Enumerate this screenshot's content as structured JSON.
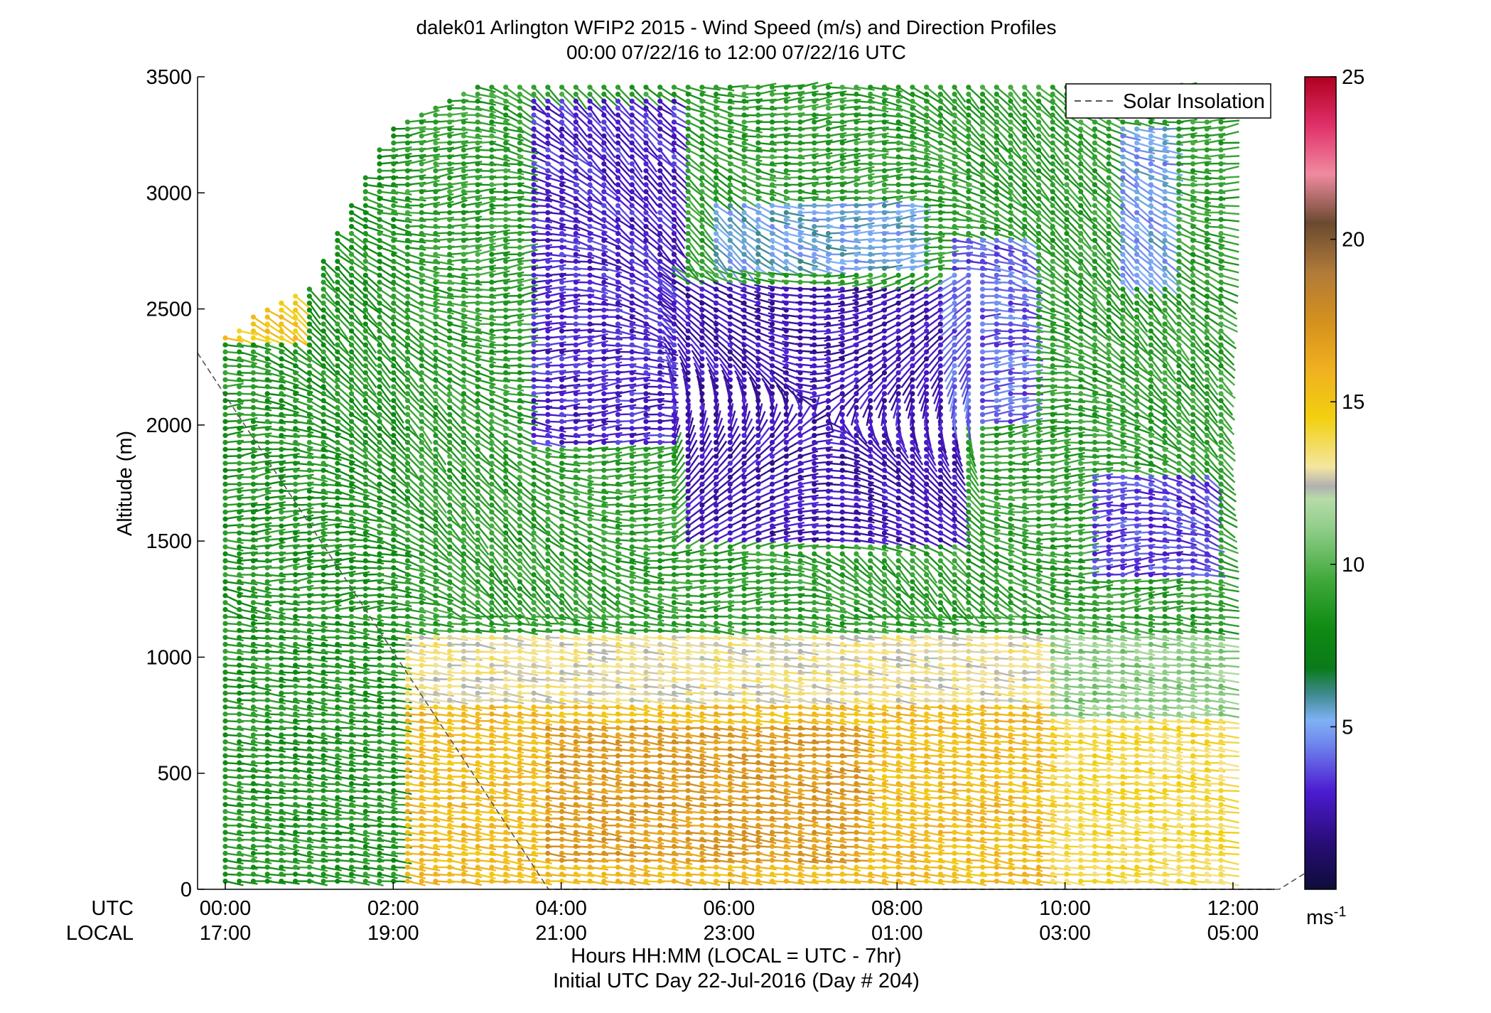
{
  "chart_data": {
    "type": "scatter",
    "title": "dalek01 Arlington WFIP2 2015 - Wind Speed (m/s) and Direction Profiles",
    "subtitle": "00:00 07/22/16 to 12:00 07/22/16  UTC",
    "ylabel": "Altitude (m)",
    "xlabel": "Hours HH:MM  (LOCAL = UTC - 7hr)",
    "xlabel2": "Initial UTC Day 22-Jul-2016 (Day # 204)",
    "row_label_utc": "UTC",
    "row_label_local": "LOCAL",
    "ylim": [
      0,
      3500
    ],
    "y_ticks": [
      {
        "value": 0,
        "label": "0"
      },
      {
        "value": 500,
        "label": "500"
      },
      {
        "value": 1000,
        "label": "1000"
      },
      {
        "value": 1500,
        "label": "1500"
      },
      {
        "value": 2000,
        "label": "2000"
      },
      {
        "value": 2500,
        "label": "2500"
      },
      {
        "value": 3000,
        "label": "3000"
      },
      {
        "value": 3500,
        "label": "3500"
      }
    ],
    "xlim_hours": [
      -0.33,
      12.5
    ],
    "x_ticks": [
      {
        "hour": 0,
        "utc": "00:00",
        "local": "17:00"
      },
      {
        "hour": 2,
        "utc": "02:00",
        "local": "19:00"
      },
      {
        "hour": 4,
        "utc": "04:00",
        "local": "21:00"
      },
      {
        "hour": 6,
        "utc": "06:00",
        "local": "23:00"
      },
      {
        "hour": 8,
        "utc": "08:00",
        "local": "01:00"
      },
      {
        "hour": 10,
        "utc": "10:00",
        "local": "03:00"
      },
      {
        "hour": 12,
        "utc": "12:00",
        "local": "05:00"
      }
    ],
    "legend": {
      "position": "top-right",
      "entry": "Solar Insolation",
      "line_color": "#555555"
    },
    "solar_insolation_line": [
      {
        "hour": -0.33,
        "alt": 2310
      },
      {
        "hour": 3.85,
        "alt": 0
      },
      {
        "hour": 12.55,
        "alt": 0
      },
      {
        "hour": 12.95,
        "alt": 90
      }
    ],
    "colorbar": {
      "label": "ms",
      "label_exp": "-1",
      "range": [
        0,
        25
      ],
      "ticks": [
        {
          "value": 5,
          "label": "5"
        },
        {
          "value": 10,
          "label": "10"
        },
        {
          "value": 15,
          "label": "15"
        },
        {
          "value": 20,
          "label": "20"
        },
        {
          "value": 25,
          "label": "25"
        }
      ],
      "stops": [
        {
          "value": 0,
          "color": "#0d0d3a"
        },
        {
          "value": 1.5,
          "color": "#2a0d7a"
        },
        {
          "value": 3,
          "color": "#4b1bd0"
        },
        {
          "value": 4.5,
          "color": "#6f88ee"
        },
        {
          "value": 5.2,
          "color": "#7fb2f5"
        },
        {
          "value": 6,
          "color": "#3f8a90"
        },
        {
          "value": 6.8,
          "color": "#0a7a1a"
        },
        {
          "value": 8,
          "color": "#0f8a12"
        },
        {
          "value": 9.5,
          "color": "#3fa83a"
        },
        {
          "value": 11,
          "color": "#8ccb86"
        },
        {
          "value": 12,
          "color": "#b6dca8"
        },
        {
          "value": 12.4,
          "color": "#b0b0b0"
        },
        {
          "value": 13,
          "color": "#f4e6a0"
        },
        {
          "value": 14.5,
          "color": "#f2d010"
        },
        {
          "value": 16,
          "color": "#f0b020"
        },
        {
          "value": 17.5,
          "color": "#d4901e"
        },
        {
          "value": 19,
          "color": "#b07a3a"
        },
        {
          "value": 20.5,
          "color": "#6a4a30"
        },
        {
          "value": 22,
          "color": "#f08aa0"
        },
        {
          "value": 23.5,
          "color": "#e0306a"
        },
        {
          "value": 25,
          "color": "#b00020"
        }
      ]
    },
    "barb_grid": {
      "hour_start": 0,
      "hour_end": 11.9,
      "hour_step": 0.167,
      "alt_start": 35,
      "alt_step": 30
    },
    "profile_tops": [
      {
        "hour": 0.0,
        "top": 2400
      },
      {
        "hour": 1.0,
        "top": 2600
      },
      {
        "hour": 2.0,
        "top": 3300
      },
      {
        "hour": 3.0,
        "top": 3480
      },
      {
        "hour": 4.0,
        "top": 3480
      },
      {
        "hour": 6.0,
        "top": 3480
      },
      {
        "hour": 8.0,
        "top": 3480
      },
      {
        "hour": 10.0,
        "top": 3480
      },
      {
        "hour": 11.9,
        "top": 3480
      }
    ],
    "regions": [
      {
        "h0": -1,
        "h1": 2.1,
        "a0": 0,
        "a1": 3500,
        "speed": 8.5
      },
      {
        "h0": -1,
        "h1": 0.9,
        "a0": 2350,
        "a1": 3500,
        "speed": 15
      },
      {
        "h0": 2.1,
        "h1": 9.8,
        "a0": 0,
        "a1": 800,
        "speed": 15.5
      },
      {
        "h0": 3.8,
        "h1": 7.6,
        "a0": 100,
        "a1": 700,
        "speed": 17
      },
      {
        "h0": 2.1,
        "h1": 9.8,
        "a0": 800,
        "a1": 1100,
        "speed": 13
      },
      {
        "h0": 9.8,
        "h1": 12.2,
        "a0": 0,
        "a1": 750,
        "speed": 14
      },
      {
        "h0": 9.8,
        "h1": 12.2,
        "a0": 750,
        "a1": 1100,
        "speed": 11
      },
      {
        "h0": 2.1,
        "h1": 12.2,
        "a0": 1100,
        "a1": 3500,
        "speed": 9
      },
      {
        "h0": 3.6,
        "h1": 5.5,
        "a0": 1900,
        "a1": 3400,
        "speed": 3
      },
      {
        "h0": 5.4,
        "h1": 8.7,
        "a0": 1500,
        "a1": 2600,
        "speed": 2.5
      },
      {
        "h0": 5.8,
        "h1": 8.3,
        "a0": 2650,
        "a1": 2950,
        "speed": 5.3
      },
      {
        "h0": 8.6,
        "h1": 9.6,
        "a0": 2000,
        "a1": 2800,
        "speed": 4
      },
      {
        "h0": 10.3,
        "h1": 11.8,
        "a0": 1350,
        "a1": 1800,
        "speed": 3.5
      },
      {
        "h0": 10.6,
        "h1": 11.3,
        "a0": 2600,
        "a1": 3300,
        "speed": 5
      }
    ]
  }
}
